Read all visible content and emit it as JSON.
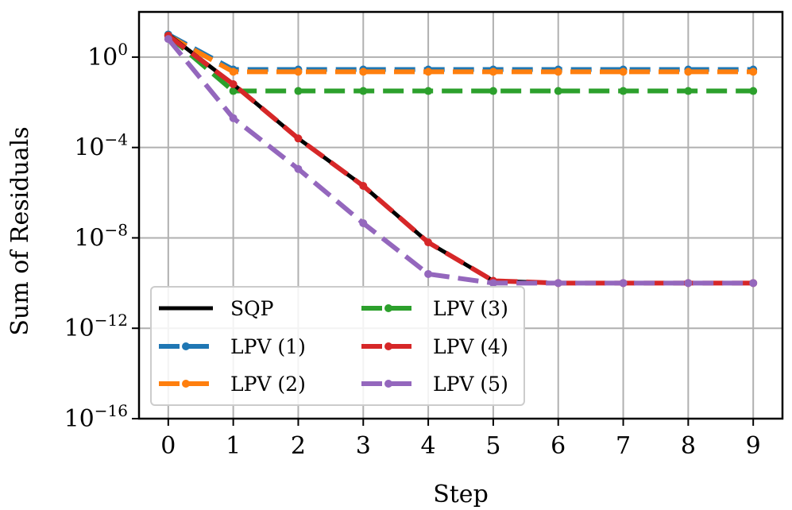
{
  "chart_data": {
    "type": "line",
    "xlabel": "Step",
    "ylabel": "Sum of Residuals",
    "yscale": "log",
    "x": [
      0,
      1,
      2,
      3,
      4,
      5,
      6,
      7,
      8,
      9
    ],
    "xlim": [
      -0.45,
      9.45
    ],
    "ylim_exponent": [
      -16,
      2
    ],
    "xticks": [
      "0",
      "1",
      "2",
      "3",
      "4",
      "5",
      "6",
      "7",
      "8",
      "9"
    ],
    "yticks": [
      {
        "exp": 0,
        "base": "10",
        "power": "0"
      },
      {
        "exp": -4,
        "base": "10",
        "power": "−4"
      },
      {
        "exp": -8,
        "base": "10",
        "power": "−8"
      },
      {
        "exp": -12,
        "base": "10",
        "power": "−12"
      },
      {
        "exp": -16,
        "base": "10",
        "power": "−16"
      }
    ],
    "grid": true,
    "legend_position": "lower-left",
    "series": [
      {
        "name": "SQP",
        "color": "#000000",
        "style": "solid",
        "markers": false,
        "log10_values": [
          1.0,
          -1.2,
          -3.6,
          -5.7,
          -8.2,
          -9.9,
          -10.0,
          -10.0,
          -10.0,
          -10.0
        ]
      },
      {
        "name": "LPV (1)",
        "color": "#1f77b4",
        "style": "dashed",
        "markers": true,
        "log10_values": [
          1.0,
          -0.55,
          -0.55,
          -0.55,
          -0.55,
          -0.55,
          -0.55,
          -0.55,
          -0.55,
          -0.55
        ]
      },
      {
        "name": "LPV (2)",
        "color": "#ff7f0e",
        "style": "dashed",
        "markers": true,
        "log10_values": [
          0.95,
          -0.65,
          -0.65,
          -0.65,
          -0.65,
          -0.65,
          -0.65,
          -0.65,
          -0.65,
          -0.65
        ]
      },
      {
        "name": "LPV (3)",
        "color": "#2ca02c",
        "style": "dashed",
        "markers": true,
        "log10_values": [
          0.95,
          -1.5,
          -1.5,
          -1.5,
          -1.5,
          -1.5,
          -1.5,
          -1.5,
          -1.5,
          -1.5
        ]
      },
      {
        "name": "LPV (4)",
        "color": "#d62728",
        "style": "dashed",
        "markers": true,
        "log10_values": [
          0.95,
          -1.2,
          -3.6,
          -5.7,
          -8.2,
          -9.9,
          -10.0,
          -10.0,
          -10.0,
          -10.0
        ]
      },
      {
        "name": "LPV (5)",
        "color": "#9467bd",
        "style": "dashed",
        "markers": true,
        "log10_values": [
          0.8,
          -2.7,
          -4.95,
          -7.35,
          -9.6,
          -10.0,
          -10.0,
          -10.0,
          -10.0,
          -10.0
        ]
      }
    ]
  }
}
